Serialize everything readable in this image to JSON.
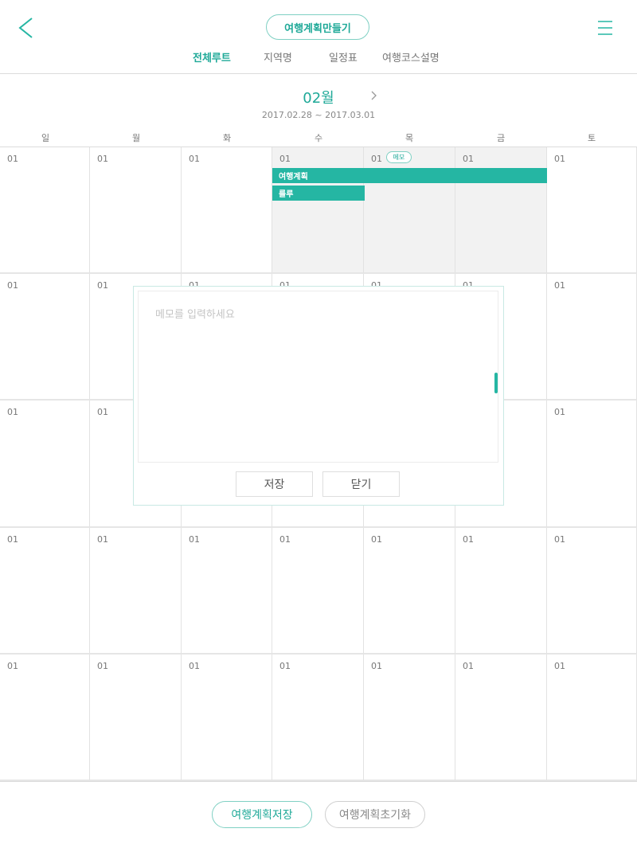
{
  "header": {
    "back_icon": "chevron-left-icon",
    "menu_icon": "hamburger-menu-icon",
    "plan_button": "여행계획만들기",
    "tabs": [
      {
        "label": "전체루트",
        "active": true
      },
      {
        "label": "지역명",
        "active": false
      },
      {
        "label": "일정표",
        "active": false
      },
      {
        "label": "여행코스설명",
        "active": false
      }
    ]
  },
  "calendar": {
    "month": "02월",
    "range": "2017.02.28 ~ 2017.03.01",
    "prev_icon": "chevron-left-icon",
    "next_icon": "chevron-right-icon",
    "weekdays": [
      "일",
      "월",
      "화",
      "수",
      "목",
      "금",
      "토"
    ],
    "day_label": "01",
    "memo_badge": "메모",
    "events": [
      {
        "label": "여행계획",
        "color": "#25b6a3"
      },
      {
        "label": "룰루",
        "color": "#25b6a3"
      }
    ]
  },
  "memo": {
    "placeholder": "메모를 입력하세요",
    "save": "저장",
    "close": "닫기"
  },
  "footer": {
    "save": "여행계획저장",
    "reset": "여행계획초기화"
  },
  "colors": {
    "accent": "#25b6a3",
    "text_accent": "#1fa998",
    "shade": "#f2f2f2"
  }
}
